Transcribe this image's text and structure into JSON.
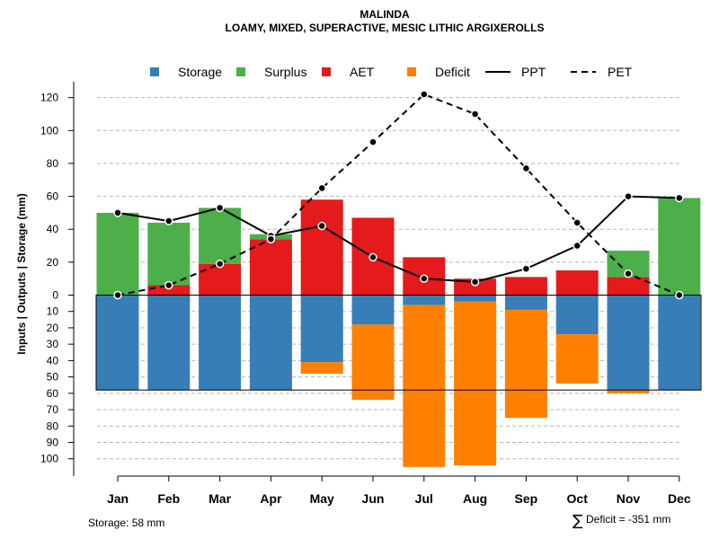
{
  "chart_data": {
    "type": "bar",
    "title": "MALINDA",
    "subtitle": "LOAMY, MIXED, SUPERACTIVE, MESIC LITHIC ARGIXEROLLS",
    "ylabel": "Inputs | Outputs | Storage    (mm)",
    "categories": [
      "Jan",
      "Feb",
      "Mar",
      "Apr",
      "May",
      "Jun",
      "Jul",
      "Aug",
      "Sep",
      "Oct",
      "Nov",
      "Dec"
    ],
    "upper_axis": {
      "ylim": [
        0,
        130
      ],
      "ticks": [
        0,
        20,
        40,
        60,
        80,
        100,
        120
      ]
    },
    "lower_axis": {
      "ylim": [
        0,
        105
      ],
      "ticks": [
        10,
        20,
        30,
        40,
        50,
        60,
        70,
        80,
        90,
        100
      ]
    },
    "series": [
      {
        "name": "AET",
        "values": [
          0,
          6,
          19,
          34,
          58,
          47,
          23,
          10,
          11,
          15,
          11,
          0
        ]
      },
      {
        "name": "Surplus",
        "values": [
          50,
          38,
          34,
          3,
          0,
          0,
          0,
          0,
          0,
          0,
          16,
          59
        ]
      },
      {
        "name": "Storage",
        "values": [
          58,
          58,
          58,
          58,
          41,
          18,
          6,
          4,
          9,
          24,
          58,
          58
        ]
      },
      {
        "name": "Deficit",
        "values": [
          0,
          0,
          0,
          0,
          7,
          46,
          99,
          100,
          66,
          30,
          2,
          0
        ]
      },
      {
        "name": "PPT",
        "values": [
          50,
          45,
          53,
          36,
          42,
          23,
          10,
          8,
          16,
          30,
          60,
          59
        ]
      },
      {
        "name": "PET",
        "values": [
          0,
          6,
          19,
          34,
          65,
          93,
          122,
          110,
          77,
          44,
          13,
          0
        ]
      }
    ],
    "legend": {
      "position": "top",
      "entries": [
        {
          "label": "Storage",
          "kind": "box",
          "color": "#377EB8"
        },
        {
          "label": "Surplus",
          "kind": "box",
          "color": "#4DAF4A"
        },
        {
          "label": "AET",
          "kind": "box",
          "color": "#E41A1C"
        },
        {
          "label": "Deficit",
          "kind": "box",
          "color": "#FF7F00"
        },
        {
          "label": "PPT",
          "kind": "solid-line",
          "color": "#000000"
        },
        {
          "label": "PET",
          "kind": "dashed-line",
          "color": "#000000"
        }
      ]
    },
    "storage_capacity": 58,
    "grid": true
  },
  "footer": {
    "storage_label": "Storage: 58 mm",
    "deficit_symbol": "∑",
    "deficit_label": "Deficit = -351 mm"
  }
}
